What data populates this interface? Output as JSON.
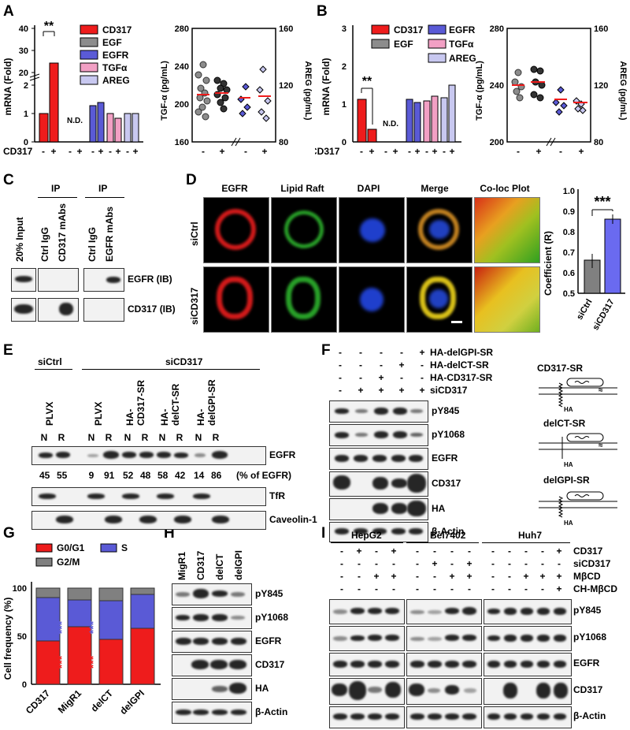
{
  "panels": [
    "A",
    "B",
    "C",
    "D",
    "E",
    "F",
    "G",
    "H",
    "I"
  ],
  "panelA": {
    "ylabel": "mRNA (Fold)",
    "yticks_lower": [
      "0",
      "1",
      "2"
    ],
    "yticks_upper": [
      "20",
      "30",
      "40"
    ],
    "treatment_label": "CD317",
    "signs": [
      "-",
      "+",
      "-",
      "+",
      "-",
      "+",
      "-",
      "+",
      "-",
      "+"
    ],
    "nd": "N.D.",
    "significance": "**",
    "legend": [
      "CD317",
      "EGF",
      "EGFR",
      "TGFα",
      "AREG"
    ],
    "scatter": {
      "ylabel_left": "TGF-α  (pg/mL)",
      "ylabel_right": "AREG (pg/mL)",
      "left_ticks": [
        "160",
        "200",
        "240",
        "280"
      ],
      "right_ticks": [
        "80",
        "120",
        "160"
      ],
      "signs": [
        "-",
        "+",
        "-",
        "+"
      ]
    }
  },
  "panelB": {
    "ylabel": "mRNA (Fold)",
    "yticks": [
      "0",
      "1",
      "2",
      "3"
    ],
    "treatment_label": "siCD317",
    "signs": [
      "-",
      "+",
      "-",
      "+",
      "-",
      "+",
      "-",
      "+",
      "-",
      "+"
    ],
    "nd": "N.D.",
    "significance": "**",
    "legend": [
      "CD317",
      "EGF",
      "EGFR",
      "TGFα",
      "AREG"
    ],
    "scatter": {
      "ylabel_left": "TGF-α  (pg/mL)",
      "ylabel_right": "AREG (pg/mL)",
      "left_ticks": [
        "200",
        "240",
        "280"
      ],
      "right_ticks": [
        "80",
        "120",
        "160"
      ],
      "signs": [
        "-",
        "+",
        "-",
        "+"
      ]
    }
  },
  "panelC": {
    "ip": [
      "IP",
      "IP"
    ],
    "lanes": [
      "20% Input",
      "Ctrl IgG",
      "CD317 mAbs",
      "Ctrl IgG",
      "EGFR mAbs"
    ],
    "rows": [
      "EGFR (IB)",
      "CD317 (IB)"
    ]
  },
  "panelD": {
    "columns": [
      "EGFR",
      "Lipid  Raft",
      "DAPI",
      "Merge",
      "Co-loc Plot"
    ],
    "rows": [
      "siCtrl",
      "siCD317"
    ],
    "chart": {
      "ylabel": "Coefficient (R)",
      "yticks": [
        "0.5",
        "0.6",
        "0.7",
        "0.8",
        "0.9",
        "1.0"
      ],
      "significance": "***",
      "categories": [
        "siCtrl",
        "siCD317"
      ]
    }
  },
  "panelE": {
    "groups": [
      "siCtrl",
      "siCD317"
    ],
    "constructs": [
      "PLVX",
      "PLVX",
      "HA-\nCD317-SR",
      "HA-\ndelCT-SR",
      "HA-\ndelGPI-SR"
    ],
    "nr": [
      "N",
      "R",
      "N",
      "R",
      "N",
      "R",
      "N",
      "R",
      "N",
      "R"
    ],
    "percent": [
      "45",
      "55",
      "9",
      "91",
      "52",
      "48",
      "58",
      "42",
      "14",
      "86"
    ],
    "percent_label": "(% of EGFR)",
    "rows": [
      "EGFR",
      "TfR",
      "Caveolin-1"
    ]
  },
  "panelF": {
    "conditions": [
      {
        "label": "HA-delGPI-SR",
        "signs": [
          "-",
          "-",
          "-",
          "-",
          "+"
        ]
      },
      {
        "label": "HA-delCT-SR",
        "signs": [
          "-",
          "-",
          "-",
          "+",
          "-"
        ]
      },
      {
        "label": "HA-CD317-SR",
        "signs": [
          "-",
          "-",
          "+",
          "-",
          "-"
        ]
      },
      {
        "label": "siCD317",
        "signs": [
          "-",
          "+",
          "+",
          "+",
          "+"
        ]
      }
    ],
    "rows": [
      "pY845",
      "pY1068",
      "EGFR",
      "CD317",
      "HA",
      "β-Actin"
    ],
    "schematics": [
      "CD317-SR",
      "delCT-SR",
      "delGPI-SR"
    ],
    "ha": "HA"
  },
  "panelG": {
    "ylabel": "Cell frequency (%)",
    "yticks": [
      "0",
      "50",
      "100"
    ],
    "legend": [
      "G0/G1",
      "S",
      "G2/M"
    ],
    "categories": [
      "CD317",
      "MigR1",
      "delCT",
      "delGPI"
    ],
    "significance": "***"
  },
  "panelH": {
    "lanes": [
      "MigR1",
      "CD317",
      "delCT",
      "delGPI"
    ],
    "rows": [
      "pY845",
      "pY1068",
      "EGFR",
      "CD317",
      "HA",
      "β-Actin"
    ]
  },
  "panelI": {
    "cell_lines": [
      "HepG2",
      "Bel7402",
      "Huh7"
    ],
    "conditions": [
      {
        "label": "CD317",
        "signs": [
          "-",
          "+",
          "-",
          "+",
          "-",
          "-",
          "-",
          "-",
          "-",
          "-",
          "-",
          "-",
          "+",
          "-",
          "+"
        ]
      },
      {
        "label": "siCD317",
        "signs": [
          "-",
          "-",
          "-",
          "-",
          "-",
          "+",
          "-",
          "+",
          "-",
          "-",
          "-",
          "-",
          "-",
          "-",
          "-"
        ]
      },
      {
        "label": "MβCD",
        "signs": [
          "-",
          "-",
          "+",
          "+",
          "-",
          "-",
          "+",
          "+",
          "-",
          "-",
          "+",
          "+",
          "+",
          "+",
          "+"
        ]
      },
      {
        "label": "CH-MβCD",
        "signs": [
          "-",
          "-",
          "-",
          "-",
          "-",
          "-",
          "-",
          "-",
          "-",
          "-",
          "-",
          "-",
          "+",
          "+",
          "+"
        ]
      }
    ],
    "rows": [
      "pY845",
      "pY1068",
      "EGFR",
      "CD317",
      "β-Actin"
    ]
  },
  "colors": {
    "cd317": "#ee1c1c",
    "egf": "#8c8c8c",
    "egfr": "#5a5ad6",
    "tgfa": "#f2a0c4",
    "areg": "#c8c8f0",
    "ctrl": "#808080",
    "sicd": "#6a6af0",
    "s": "#5a5ad6",
    "g2m": "#808080",
    "g0g1": "#ee1c1c",
    "raft": "#20a020",
    "dapi": "#1f3fcc"
  },
  "chart_data": [
    {
      "type": "bar",
      "panel": "A",
      "categories": [
        "CD317",
        "EGF",
        "EGFR",
        "TGFα",
        "AREG"
      ],
      "series": [
        {
          "name": "-",
          "values": [
            1.0,
            null,
            1.3,
            1.0,
            1.0
          ]
        },
        {
          "name": "+",
          "values": [
            22,
            null,
            1.4,
            0.85,
            1.0
          ]
        }
      ]
    },
    {
      "type": "bar",
      "panel": "B",
      "categories": [
        "CD317",
        "EGF",
        "EGFR",
        "TGFα",
        "AREG"
      ],
      "series": [
        {
          "name": "-",
          "values": [
            1.1,
            null,
            1.1,
            1.05,
            1.15
          ]
        },
        {
          "name": "+",
          "values": [
            0.32,
            null,
            1.0,
            1.2,
            1.5
          ]
        }
      ]
    },
    {
      "type": "scatter",
      "panel": "A",
      "groups": [
        "TGF-α -",
        "TGF-α +",
        "AREG -",
        "AREG +"
      ],
      "values": [
        210,
        212,
        110,
        112
      ]
    },
    {
      "type": "scatter",
      "panel": "B",
      "groups": [
        "TGF-α -",
        "TGF-α +",
        "AREG -",
        "AREG +"
      ],
      "values": [
        238,
        242,
        105,
        104
      ]
    },
    {
      "type": "bar",
      "panel": "D",
      "categories": [
        "siCtrl",
        "siCD317"
      ],
      "values": [
        0.66,
        0.86
      ],
      "ylim": [
        0.5,
        1.0
      ]
    },
    {
      "type": "bar",
      "panel": "G",
      "categories": [
        "CD317",
        "MigR1",
        "delCT",
        "delGPI"
      ],
      "series": [
        {
          "name": "G0/G1",
          "values": [
            45,
            60,
            47,
            58
          ]
        },
        {
          "name": "S",
          "values": [
            45,
            28,
            40,
            35
          ]
        },
        {
          "name": "G2/M",
          "values": [
            10,
            12,
            13,
            7
          ]
        }
      ]
    }
  ]
}
